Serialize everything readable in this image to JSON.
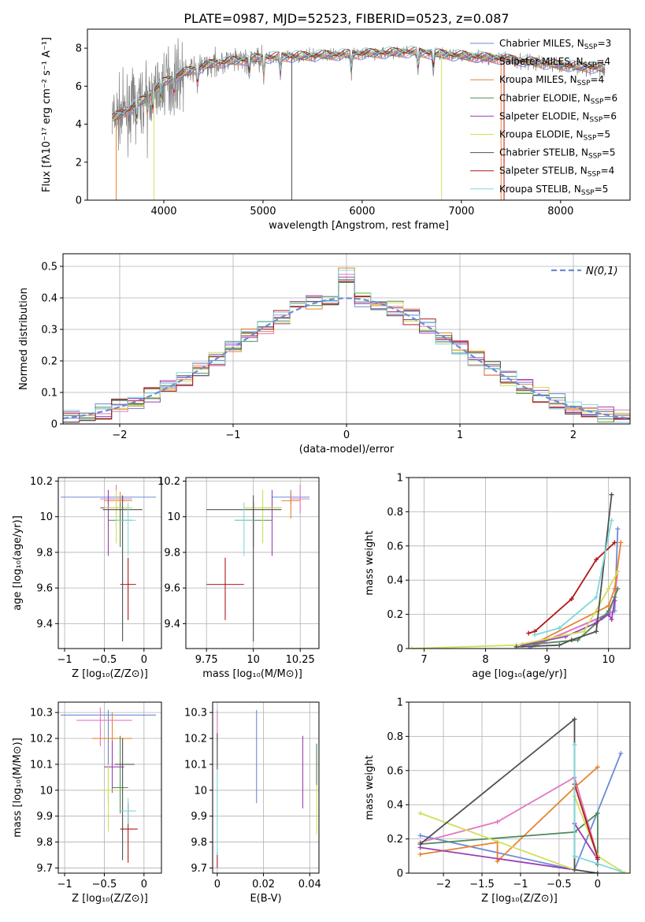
{
  "figure_title": "PLATE=0987, MJD=52523, FIBERID=0523, z=0.087",
  "series": [
    {
      "label": "Chabrier MILES, N",
      "sub": "SSP",
      "n": "=3",
      "color": "#6b8bd6"
    },
    {
      "label": "Salpeter MILES, N",
      "sub": "SSP",
      "n": "=4",
      "color": "#e377c2"
    },
    {
      "label": "Kroupa MILES, N",
      "sub": "SSP",
      "n": "=4",
      "color": "#e8822d"
    },
    {
      "label": "Chabrier ELODIE, N",
      "sub": "SSP",
      "n": "=6",
      "color": "#4e8a5a"
    },
    {
      "label": "Salpeter ELODIE, N",
      "sub": "SSP",
      "n": "=6",
      "color": "#9b3fb4"
    },
    {
      "label": "Kroupa ELODIE, N",
      "sub": "SSP",
      "n": "=5",
      "color": "#cfe05a"
    },
    {
      "label": "Chabrier STELIB, N",
      "sub": "SSP",
      "n": "=5",
      "color": "#505050"
    },
    {
      "label": "Salpeter STELIB, N",
      "sub": "SSP",
      "n": "=4",
      "color": "#b01818"
    },
    {
      "label": "Kroupa STELIB, N",
      "sub": "SSP",
      "n": "=5",
      "color": "#7fd8dc"
    }
  ],
  "chart_data": [
    {
      "id": "spectrum",
      "type": "line",
      "xlabel": "wavelength [Angstrom, rest frame]",
      "ylabel": "Flux [fλ10⁻¹⁷ erg cm⁻² s⁻¹ A⁻¹]",
      "xlim": [
        3230,
        8700
      ],
      "ylim": [
        0,
        9
      ],
      "xticks": [
        4000,
        5000,
        6000,
        7000,
        8000
      ],
      "yticks": [
        0,
        2,
        4,
        6,
        8
      ],
      "data_color": "#808080",
      "continuum": [
        [
          3480,
          4.3
        ],
        [
          3600,
          4.6
        ],
        [
          3800,
          5.3
        ],
        [
          4000,
          6.2
        ],
        [
          4200,
          6.7
        ],
        [
          4500,
          7.2
        ],
        [
          5000,
          7.5
        ],
        [
          5500,
          7.6
        ],
        [
          6000,
          7.7
        ],
        [
          6500,
          7.8
        ],
        [
          7000,
          7.6
        ],
        [
          7500,
          7.4
        ],
        [
          8000,
          7.1
        ],
        [
          8500,
          6.9
        ]
      ]
    },
    {
      "id": "residuals",
      "type": "histogram",
      "xlabel": "(data-model)/error",
      "ylabel": "Normed distribution",
      "xlim": [
        -2.5,
        2.5
      ],
      "ylim": [
        0,
        0.54
      ],
      "xticks": [
        -2,
        -1,
        0,
        1,
        2
      ],
      "yticks": [
        0.0,
        0.1,
        0.2,
        0.3,
        0.4,
        0.5
      ],
      "legend": "N(0,1)",
      "legend_color": "#6b8bd6"
    },
    {
      "id": "age_vs_Z",
      "type": "errorbar",
      "xlabel": "Z [log₁₀(Z/Z⊙)]",
      "ylabel": "age  [log₁₀(age/yr)]",
      "xlim": [
        -1.08,
        0.22
      ],
      "ylim": [
        9.26,
        10.22
      ],
      "xticks": [
        -1.0,
        -0.5,
        0.0
      ],
      "yticks": [
        9.4,
        9.6,
        9.8,
        10.0,
        10.2
      ],
      "points": [
        {
          "s": 0,
          "x": -0.45,
          "xerr": [
            0.6,
            0.6
          ],
          "y": 10.11,
          "yerr": [
            0.04,
            0.04
          ]
        },
        {
          "s": 1,
          "x": -0.35,
          "xerr": [
            0.2,
            0.2
          ],
          "y": 10.1,
          "yerr": [
            0.08,
            0.08
          ]
        },
        {
          "s": 2,
          "x": -0.3,
          "xerr": [
            0.2,
            0.15
          ],
          "y": 10.09,
          "yerr": [
            0.1,
            0.05
          ]
        },
        {
          "s": 3,
          "x": -0.3,
          "xerr": [
            0.15,
            0.15
          ],
          "y": 9.98,
          "yerr": [
            0.15,
            0.1
          ]
        },
        {
          "s": 4,
          "x": -0.45,
          "xerr": [
            0.1,
            0.15
          ],
          "y": 10.05,
          "yerr": [
            0.27,
            0.1
          ]
        },
        {
          "s": 5,
          "x": -0.35,
          "xerr": [
            0.15,
            0.2
          ],
          "y": 10.05,
          "yerr": [
            0.2,
            0.1
          ]
        },
        {
          "s": 6,
          "x": -0.27,
          "xerr": [
            0.25,
            0.25
          ],
          "y": 10.04,
          "yerr": [
            0.74,
            0.08
          ]
        },
        {
          "s": 7,
          "x": -0.2,
          "xerr": [
            0.1,
            0.1
          ],
          "y": 9.62,
          "yerr": [
            0.2,
            0.15
          ]
        },
        {
          "s": 8,
          "x": -0.2,
          "xerr": [
            0.15,
            0.1
          ],
          "y": 9.98,
          "yerr": [
            0.2,
            0.1
          ]
        }
      ]
    },
    {
      "id": "age_vs_mass",
      "type": "errorbar",
      "xlabel": "mass [log₁₀(M/M⊙)]",
      "ylabel": "",
      "xlim": [
        9.64,
        10.35
      ],
      "ylim": [
        9.26,
        10.22
      ],
      "xticks": [
        9.75,
        10.0,
        10.25
      ],
      "yticks": [
        9.4,
        9.6,
        9.8,
        10.0,
        10.2
      ],
      "points": [
        {
          "s": 0,
          "x": 10.2,
          "xerr": [
            0.1,
            0.1
          ],
          "y": 10.11,
          "yerr": [
            0.04,
            0.04
          ]
        },
        {
          "s": 1,
          "x": 10.25,
          "xerr": [
            0.05,
            0.05
          ],
          "y": 10.1,
          "yerr": [
            0.08,
            0.08
          ]
        },
        {
          "s": 2,
          "x": 10.2,
          "xerr": [
            0.05,
            0.05
          ],
          "y": 10.09,
          "yerr": [
            0.1,
            0.05
          ]
        },
        {
          "s": 3,
          "x": 10.0,
          "xerr": [
            0.1,
            0.1
          ],
          "y": 9.98,
          "yerr": [
            0.15,
            0.1
          ]
        },
        {
          "s": 4,
          "x": 10.1,
          "xerr": [
            0.05,
            0.05
          ],
          "y": 10.05,
          "yerr": [
            0.27,
            0.1
          ]
        },
        {
          "s": 5,
          "x": 10.05,
          "xerr": [
            0.1,
            0.1
          ],
          "y": 10.05,
          "yerr": [
            0.2,
            0.1
          ]
        },
        {
          "s": 6,
          "x": 10.0,
          "xerr": [
            0.25,
            0.15
          ],
          "y": 10.04,
          "yerr": [
            0.74,
            0.08
          ]
        },
        {
          "s": 7,
          "x": 9.85,
          "xerr": [
            0.1,
            0.1
          ],
          "y": 9.62,
          "yerr": [
            0.2,
            0.15
          ]
        },
        {
          "s": 8,
          "x": 9.95,
          "xerr": [
            0.05,
            0.05
          ],
          "y": 9.98,
          "yerr": [
            0.2,
            0.1
          ]
        }
      ]
    },
    {
      "id": "weight_vs_age",
      "type": "line",
      "xlabel": "age  [log₁₀(age/yr)]",
      "ylabel": "mass weight",
      "xlim": [
        6.75,
        10.35
      ],
      "ylim": [
        0,
        1.0
      ],
      "xticks": [
        7,
        8,
        9,
        10
      ],
      "yticks": [
        0.0,
        0.2,
        0.4,
        0.6,
        0.8,
        1.0
      ],
      "lines": [
        {
          "s": 0,
          "pts": [
            [
              8.7,
              0.0
            ],
            [
              10.1,
              0.22
            ],
            [
              10.15,
              0.7
            ]
          ]
        },
        {
          "s": 1,
          "pts": [
            [
              8.8,
              0.02
            ],
            [
              10.0,
              0.2
            ],
            [
              10.1,
              0.3
            ],
            [
              10.15,
              0.45
            ]
          ]
        },
        {
          "s": 2,
          "pts": [
            [
              8.8,
              0.03
            ],
            [
              10.0,
              0.25
            ],
            [
              10.1,
              0.35
            ],
            [
              10.2,
              0.62
            ]
          ]
        },
        {
          "s": 3,
          "pts": [
            [
              8.6,
              0.02
            ],
            [
              9.5,
              0.05
            ],
            [
              9.9,
              0.18
            ],
            [
              10.0,
              0.22
            ],
            [
              10.1,
              0.3
            ],
            [
              10.15,
              0.35
            ]
          ]
        },
        {
          "s": 4,
          "pts": [
            [
              8.6,
              0.02
            ],
            [
              9.3,
              0.07
            ],
            [
              9.8,
              0.15
            ],
            [
              10.0,
              0.2
            ],
            [
              10.05,
              0.17
            ],
            [
              10.1,
              0.28
            ]
          ]
        },
        {
          "s": 5,
          "pts": [
            [
              6.8,
              0.0
            ],
            [
              8.5,
              0.02
            ],
            [
              9.6,
              0.1
            ],
            [
              10.0,
              0.35
            ],
            [
              10.15,
              0.45
            ]
          ]
        },
        {
          "s": 6,
          "pts": [
            [
              8.5,
              0.01
            ],
            [
              9.2,
              0.02
            ],
            [
              9.4,
              0.05
            ],
            [
              9.8,
              0.1
            ],
            [
              10.05,
              0.9
            ]
          ]
        },
        {
          "s": 7,
          "pts": [
            [
              8.7,
              0.09
            ],
            [
              8.8,
              0.1
            ],
            [
              9.4,
              0.29
            ],
            [
              9.8,
              0.52
            ],
            [
              10.1,
              0.62
            ]
          ]
        },
        {
          "s": 8,
          "pts": [
            [
              8.8,
              0.08
            ],
            [
              9.2,
              0.12
            ],
            [
              9.8,
              0.3
            ],
            [
              10.05,
              0.75
            ]
          ]
        }
      ]
    },
    {
      "id": "mass_vs_Z",
      "type": "errorbar",
      "xlabel": "Z [log₁₀(Z/Z⊙)]",
      "ylabel": "mass [log₁₀(M/M⊙)]",
      "xlim": [
        -1.08,
        0.22
      ],
      "ylim": [
        9.68,
        10.34
      ],
      "xticks": [
        -1.0,
        -0.5,
        0.0
      ],
      "yticks": [
        9.7,
        9.8,
        9.9,
        10.0,
        10.1,
        10.2,
        10.3
      ],
      "points": [
        {
          "s": 0,
          "x": -0.45,
          "xerr": [
            0.6,
            0.6
          ],
          "y": 10.29,
          "yerr": [
            0.34,
            0.02
          ]
        },
        {
          "s": 1,
          "x": -0.55,
          "xerr": [
            0.3,
            0.4
          ],
          "y": 10.27,
          "yerr": [
            0.1,
            0.05
          ]
        },
        {
          "s": 2,
          "x": -0.4,
          "xerr": [
            0.25,
            0.25
          ],
          "y": 10.2,
          "yerr": [
            0.1,
            0.1
          ]
        },
        {
          "s": 3,
          "x": -0.3,
          "xerr": [
            0.1,
            0.1
          ],
          "y": 10.01,
          "yerr": [
            0.1,
            0.2
          ]
        },
        {
          "s": 4,
          "x": -0.4,
          "xerr": [
            0.1,
            0.15
          ],
          "y": 10.09,
          "yerr": [
            0.1,
            0.1
          ]
        },
        {
          "s": 5,
          "x": -0.45,
          "xerr": [
            0.1,
            0.15
          ],
          "y": 10.0,
          "yerr": [
            0.16,
            0.1
          ]
        },
        {
          "s": 6,
          "x": -0.27,
          "xerr": [
            0.1,
            0.15
          ],
          "y": 10.1,
          "yerr": [
            0.37,
            0.1
          ]
        },
        {
          "s": 7,
          "x": -0.2,
          "xerr": [
            0.1,
            0.12
          ],
          "y": 9.85,
          "yerr": [
            0.13,
            0.1
          ]
        },
        {
          "s": 8,
          "x": -0.2,
          "xerr": [
            0.1,
            0.1
          ],
          "y": 9.92,
          "yerr": [
            0.05,
            0.05
          ]
        }
      ]
    },
    {
      "id": "mass_vs_EBV",
      "type": "errorbar",
      "xlabel": "E(B-V)",
      "ylabel": "",
      "xlim": [
        -0.002,
        0.044
      ],
      "ylim": [
        9.68,
        10.34
      ],
      "xticks": [
        0.0,
        0.02,
        0.04
      ],
      "yticks": [
        9.7,
        9.8,
        9.9,
        10.0,
        10.1,
        10.2,
        10.3
      ],
      "points": [
        {
          "s": 0,
          "x": 0.017,
          "xerr": [
            0,
            0
          ],
          "y": 10.13,
          "yerr": [
            0.18,
            0.18
          ]
        },
        {
          "s": 1,
          "x": 0.0,
          "xerr": [
            0,
            0
          ],
          "y": 10.25,
          "yerr": [
            0.06,
            0.06
          ]
        },
        {
          "s": 4,
          "x": 0.037,
          "xerr": [
            0,
            0
          ],
          "y": 10.07,
          "yerr": [
            0.14,
            0.14
          ]
        },
        {
          "s": 5,
          "x": 0.043,
          "xerr": [
            0,
            0
          ],
          "y": 10.0,
          "yerr": [
            0.17,
            0.17
          ]
        },
        {
          "s": 3,
          "x": 0.043,
          "xerr": [
            0,
            0
          ],
          "y": 10.1,
          "yerr": [
            0.08,
            0.08
          ]
        },
        {
          "s": 6,
          "x": 0.0,
          "xerr": [
            0,
            0
          ],
          "y": 10.15,
          "yerr": [
            0.07,
            0.07
          ]
        },
        {
          "s": 7,
          "x": 0.0,
          "xerr": [
            0,
            0
          ],
          "y": 9.73,
          "yerr": [
            0.03,
            0.03
          ]
        },
        {
          "s": 8,
          "x": 0.0,
          "xerr": [
            0,
            0
          ],
          "y": 9.95,
          "yerr": [
            0.2,
            0.12
          ]
        }
      ]
    },
    {
      "id": "weight_vs_Z",
      "type": "line",
      "xlabel": "Z [log₁₀(Z/Z⊙)]",
      "ylabel": "mass weight",
      "xlim": [
        -2.45,
        0.42
      ],
      "ylim": [
        0,
        1.0
      ],
      "xticks": [
        -2.0,
        -1.5,
        -1.0,
        -0.5,
        0.0
      ],
      "yticks": [
        0.0,
        0.2,
        0.4,
        0.6,
        0.8,
        1.0
      ],
      "lines": [
        {
          "s": 0,
          "pts": [
            [
              -2.3,
              0.22
            ],
            [
              -0.3,
              0.02
            ],
            [
              0.3,
              0.7
            ]
          ]
        },
        {
          "s": 1,
          "pts": [
            [
              -2.3,
              0.18
            ],
            [
              -1.3,
              0.3
            ],
            [
              -0.3,
              0.56
            ],
            [
              0.0,
              0.1
            ]
          ]
        },
        {
          "s": 2,
          "pts": [
            [
              -2.3,
              0.11
            ],
            [
              -1.3,
              0.18
            ],
            [
              -1.3,
              0.07
            ],
            [
              -0.3,
              0.5
            ],
            [
              0.0,
              0.62
            ]
          ]
        },
        {
          "s": 3,
          "pts": [
            [
              -2.3,
              0.17
            ],
            [
              -0.3,
              0.24
            ],
            [
              0.0,
              0.35
            ],
            [
              0.0,
              0.05
            ]
          ]
        },
        {
          "s": 4,
          "pts": [
            [
              -2.3,
              0.15
            ],
            [
              -0.3,
              0.02
            ],
            [
              -0.3,
              0.29
            ],
            [
              0.0,
              0.08
            ]
          ]
        },
        {
          "s": 5,
          "pts": [
            [
              -2.3,
              0.35
            ],
            [
              -0.3,
              0.02
            ],
            [
              -0.3,
              0.45
            ],
            [
              0.0,
              0.1
            ],
            [
              0.35,
              0.0
            ]
          ]
        },
        {
          "s": 6,
          "pts": [
            [
              -2.3,
              0.17
            ],
            [
              -0.3,
              0.9
            ],
            [
              -0.3,
              0.02
            ],
            [
              0.0,
              0.0
            ]
          ]
        },
        {
          "s": 7,
          "pts": [
            [
              -0.3,
              0.52
            ],
            [
              0.0,
              0.09
            ]
          ]
        },
        {
          "s": 8,
          "pts": [
            [
              -0.3,
              0.75
            ],
            [
              -0.3,
              0.1
            ],
            [
              0.3,
              0.01
            ]
          ]
        }
      ]
    }
  ]
}
